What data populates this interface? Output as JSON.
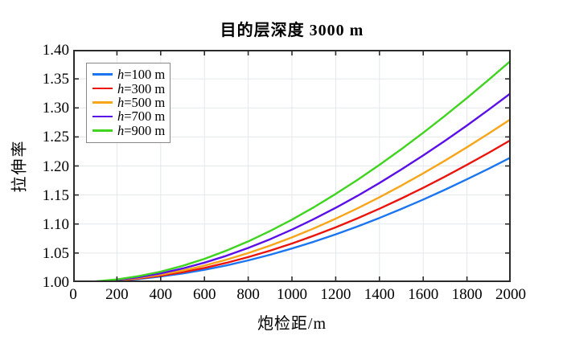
{
  "chart_data": {
    "type": "line",
    "title": "目的层深度 3000 m",
    "xlabel": "炮检距/m",
    "ylabel": "拉伸率",
    "xlim": [
      0,
      2000
    ],
    "ylim": [
      1.0,
      1.4
    ],
    "xticks": [
      0,
      200,
      400,
      600,
      800,
      1000,
      1200,
      1400,
      1600,
      1800,
      2000
    ],
    "xtick_labels": [
      "0",
      "200",
      "400",
      "600",
      "800",
      "1000",
      "1200",
      "1400",
      "1600",
      "1800",
      "2000"
    ],
    "yticks": [
      1.0,
      1.05,
      1.1,
      1.15,
      1.2,
      1.25,
      1.3,
      1.35,
      1.4
    ],
    "ytick_labels": [
      "1.00",
      "1.05",
      "1.10",
      "1.15",
      "1.20",
      "1.25",
      "1.30",
      "1.35",
      "1.40"
    ],
    "grid": true,
    "legend_position": "top-left",
    "colors": {
      "grid": "#e4e8ec",
      "axis": "#2b2b2b",
      "text": "#000000"
    },
    "x": [
      100,
      200,
      300,
      400,
      500,
      600,
      700,
      800,
      900,
      1000,
      1100,
      1200,
      1300,
      1400,
      1500,
      1600,
      1700,
      1800,
      1900,
      2000
    ],
    "series": [
      {
        "name": "h=100 m",
        "color": "#1b75f0",
        "values": [
          1.0006,
          1.0024,
          1.0053,
          1.0095,
          1.0148,
          1.0212,
          1.0287,
          1.0374,
          1.0471,
          1.0578,
          1.0695,
          1.0822,
          1.0959,
          1.1104,
          1.1259,
          1.1421,
          1.1592,
          1.177,
          1.1955,
          1.2147
        ]
      },
      {
        "name": "h=300 m",
        "color": "#ea140c",
        "values": [
          1.0007,
          1.0027,
          1.0062,
          1.0109,
          1.017,
          1.0244,
          1.0331,
          1.043,
          1.0541,
          1.0664,
          1.0798,
          1.0943,
          1.1099,
          1.1264,
          1.144,
          1.1624,
          1.1817,
          1.2019,
          1.2228,
          1.2445
        ]
      },
      {
        "name": "h=500 m",
        "color": "#f7a519",
        "values": [
          1.0008,
          1.0032,
          1.0072,
          1.0127,
          1.0198,
          1.0284,
          1.0385,
          1.05,
          1.0628,
          1.077,
          1.0925,
          1.1092,
          1.1271,
          1.1461,
          1.1662,
          1.1873,
          1.2093,
          1.2322,
          1.256,
          1.2806
        ]
      },
      {
        "name": "h=700 m",
        "color": "#5b0fe8",
        "values": [
          1.0009,
          1.0038,
          1.0085,
          1.015,
          1.0234,
          1.0335,
          1.0453,
          1.0588,
          1.0738,
          1.0904,
          1.1085,
          1.1279,
          1.1487,
          1.1707,
          1.1939,
          1.2182,
          1.2435,
          1.2698,
          1.2971,
          1.3252
        ]
      },
      {
        "name": "h=900 m",
        "color": "#3fd41f",
        "values": [
          1.0011,
          1.0045,
          1.0102,
          1.018,
          1.028,
          1.04,
          1.0541,
          1.0701,
          1.088,
          1.1076,
          1.1289,
          1.1518,
          1.1761,
          1.2019,
          1.2289,
          1.2572,
          1.2866,
          1.3171,
          1.3486,
          1.381
        ]
      }
    ]
  }
}
